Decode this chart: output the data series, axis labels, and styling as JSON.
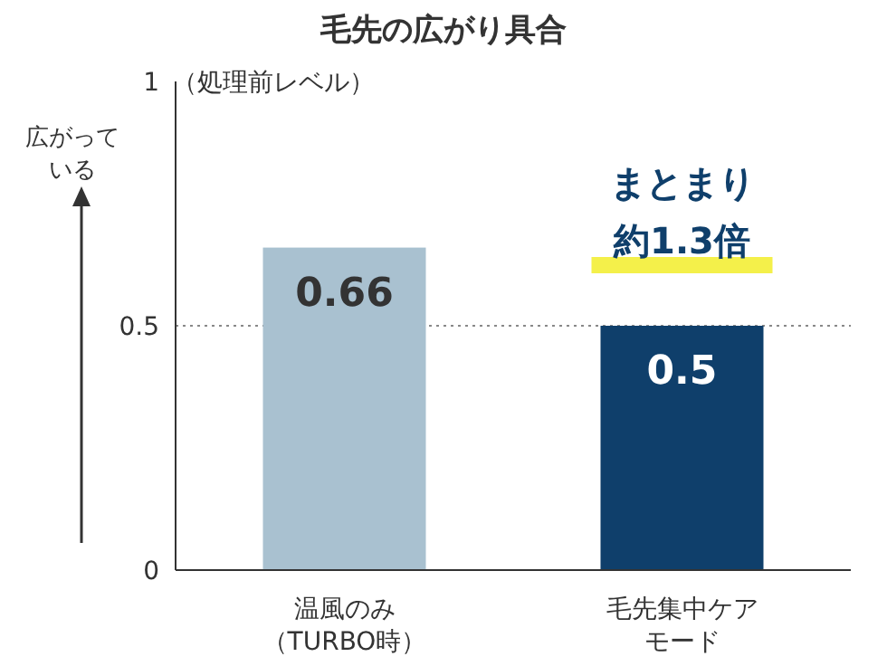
{
  "chart_data": {
    "type": "bar",
    "title": "毛先の広がり具合",
    "ylabel": "広がっている",
    "categories": [
      "温風のみ（TURBO時）",
      "毛先集中ケアモード"
    ],
    "values": [
      0.66,
      0.5
    ],
    "colors": [
      "#a9c1d0",
      "#0f3f6b"
    ],
    "ylim": [
      0,
      1
    ],
    "yticks": [
      0,
      0.5,
      1
    ],
    "ref_lines": [
      {
        "axis": "y",
        "value": 0.5,
        "line_style": "dotted",
        "color": "#888888"
      }
    ],
    "data_labels": true,
    "annotations": [
      "（処理前レベル）",
      "まとまり約1.3倍"
    ],
    "grid": false
  }
}
